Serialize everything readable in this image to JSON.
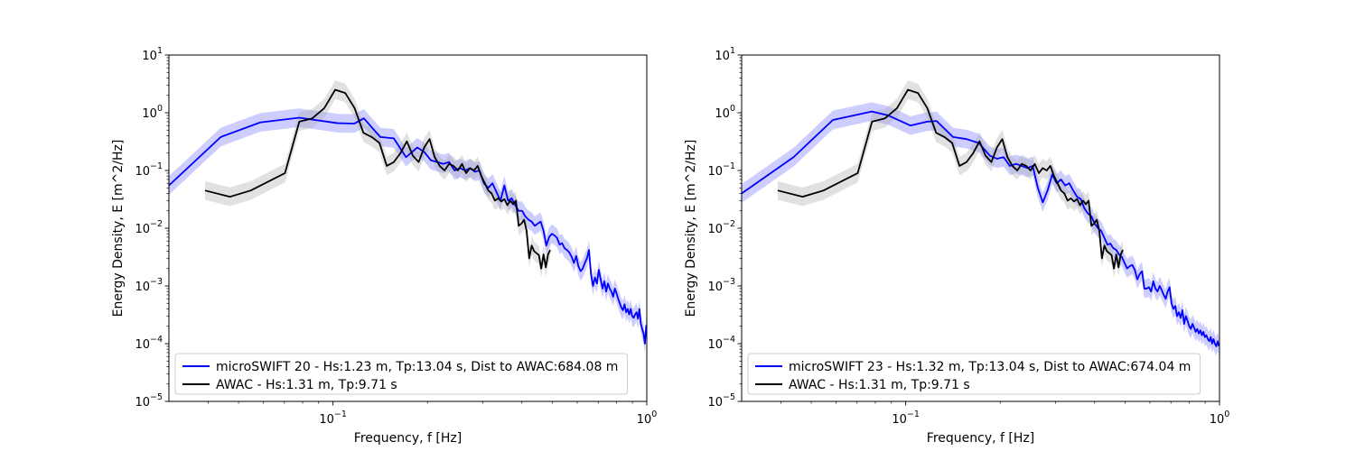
{
  "chart_data": [
    {
      "type": "line",
      "xlabel": "Frequency, f [Hz]",
      "ylabel": "Energy Density, E [m^2/Hz]",
      "xscale": "log",
      "yscale": "log",
      "xlim": [
        0.03,
        1.0
      ],
      "ylim": [
        1e-05,
        10
      ],
      "x_ticks": [
        {
          "value": 0.1,
          "base": "10",
          "exp": "−1"
        },
        {
          "value": 1.0,
          "base": "10",
          "exp": "0"
        }
      ],
      "y_ticks": [
        {
          "value": 1e-05,
          "base": "10",
          "exp": "−5"
        },
        {
          "value": 0.0001,
          "base": "10",
          "exp": "−4"
        },
        {
          "value": 0.001,
          "base": "10",
          "exp": "−3"
        },
        {
          "value": 0.01,
          "base": "10",
          "exp": "−2"
        },
        {
          "value": 0.1,
          "base": "10",
          "exp": "−1"
        },
        {
          "value": 1,
          "base": "10",
          "exp": "0"
        },
        {
          "value": 10,
          "base": "10",
          "exp": "1"
        }
      ],
      "legend_position": "lower-left",
      "series": [
        {
          "name": "microSWIFT 20 - Hs:1.23 m, Tp:13.04 s, Dist to AWAC:684.08 m",
          "color": "#0000ff",
          "band_color": "#6f6fff",
          "x": [
            0.03,
            0.0439,
            0.0586,
            0.078,
            0.1035,
            0.117,
            0.1254,
            0.1415,
            0.1562,
            0.1709,
            0.1855,
            0.1953,
            0.2051,
            0.2148,
            0.2246,
            0.2344,
            0.2441,
            0.2539,
            0.2637,
            0.2734,
            0.2832,
            0.293,
            0.3027,
            0.3125,
            0.3223,
            0.332,
            0.3418,
            0.3516,
            0.3613,
            0.3711,
            0.3809,
            0.3906,
            0.4004,
            0.4102,
            0.4199,
            0.4297,
            0.4395,
            0.4492,
            0.459,
            0.4688,
            0.4785,
            0.4883,
            0.4981,
            0.5078,
            0.5176,
            0.5273,
            0.5371,
            0.5469,
            0.5566,
            0.5664,
            0.5762,
            0.5859,
            0.5957,
            0.6055,
            0.6152,
            0.625,
            0.6348,
            0.6445,
            0.6543,
            0.6641,
            0.6738,
            0.6836,
            0.6934,
            0.7031,
            0.7129,
            0.7227,
            0.7324,
            0.7422,
            0.752,
            0.7617,
            0.7715,
            0.7813,
            0.791,
            0.8008,
            0.8105,
            0.8203,
            0.8301,
            0.8398,
            0.8496,
            0.8594,
            0.8691,
            0.8789,
            0.8887,
            0.8984,
            0.9082,
            0.918,
            0.9277,
            0.9375,
            0.9473,
            0.957,
            0.9668,
            0.9766,
            0.9863,
            0.9961
          ],
          "y": [
            0.055,
            0.38,
            0.68,
            0.82,
            0.66,
            0.65,
            0.8,
            0.38,
            0.36,
            0.17,
            0.25,
            0.21,
            0.15,
            0.14,
            0.13,
            0.14,
            0.1,
            0.11,
            0.1,
            0.11,
            0.095,
            0.1,
            0.06,
            0.05,
            0.06,
            0.042,
            0.03,
            0.055,
            0.03,
            0.033,
            0.025,
            0.02,
            0.02,
            0.016,
            0.014,
            0.013,
            0.011,
            0.012,
            0.013,
            0.009,
            0.005,
            0.007,
            0.008,
            0.0075,
            0.0068,
            0.0052,
            0.0055,
            0.0045,
            0.0042,
            0.0038,
            0.0032,
            0.0025,
            0.0033,
            0.0022,
            0.0018,
            0.002,
            0.0025,
            0.003,
            0.0042,
            0.0016,
            0.001,
            0.0014,
            0.0011,
            0.0019,
            0.0013,
            0.0009,
            0.0012,
            0.0008,
            0.0011,
            0.0009,
            0.0008,
            0.00065,
            0.0009,
            0.00075,
            0.0006,
            0.0005,
            0.00042,
            0.00038,
            0.00048,
            0.00035,
            0.0004,
            0.00032,
            0.0004,
            0.0003,
            0.00028,
            0.00032,
            0.00035,
            0.00027,
            0.0004,
            0.00022,
            0.00018,
            0.00015,
            0.0001,
            0.00021
          ],
          "band_factor": 1.45
        },
        {
          "name": "AWAC - Hs:1.31 m, Tp:9.71 s",
          "color": "#000000",
          "band_color": "#a8a8a8",
          "x": [
            0.0391,
            0.0469,
            0.0547,
            0.0625,
            0.0703,
            0.0781,
            0.0859,
            0.0938,
            0.1016,
            0.1094,
            0.1172,
            0.125,
            0.1328,
            0.1406,
            0.1484,
            0.1563,
            0.1641,
            0.1719,
            0.1797,
            0.1875,
            0.1953,
            0.2031,
            0.2109,
            0.2188,
            0.2266,
            0.2344,
            0.2422,
            0.25,
            0.2578,
            0.2656,
            0.2734,
            0.2813,
            0.2891,
            0.2969,
            0.3047,
            0.3125,
            0.3203,
            0.3281,
            0.3359,
            0.3438,
            0.3516,
            0.3594,
            0.3672,
            0.375,
            0.3828,
            0.3906,
            0.3984,
            0.4063,
            0.4141,
            0.4219,
            0.4297,
            0.4375,
            0.4453,
            0.4531,
            0.4609,
            0.4688,
            0.4766,
            0.4844,
            0.4922
          ],
          "y": [
            0.045,
            0.035,
            0.045,
            0.065,
            0.09,
            0.7,
            0.8,
            1.2,
            2.5,
            2.2,
            1.2,
            0.45,
            0.38,
            0.3,
            0.12,
            0.14,
            0.2,
            0.32,
            0.18,
            0.14,
            0.25,
            0.35,
            0.17,
            0.12,
            0.1,
            0.13,
            0.12,
            0.1,
            0.13,
            0.09,
            0.11,
            0.1,
            0.12,
            0.08,
            0.06,
            0.045,
            0.04,
            0.03,
            0.033,
            0.029,
            0.032,
            0.025,
            0.03,
            0.026,
            0.03,
            0.011,
            0.012,
            0.014,
            0.009,
            0.003,
            0.005,
            0.004,
            0.0037,
            0.0034,
            0.002,
            0.0035,
            0.0021,
            0.0035,
            0.0042
          ],
          "band_factor": 1.45
        }
      ]
    },
    {
      "type": "line",
      "xlabel": "Frequency, f [Hz]",
      "ylabel": "Energy Density, E [m^2/Hz]",
      "xscale": "log",
      "yscale": "log",
      "xlim": [
        0.03,
        1.0
      ],
      "ylim": [
        1e-05,
        10
      ],
      "x_ticks": [
        {
          "value": 0.1,
          "base": "10",
          "exp": "−1"
        },
        {
          "value": 1.0,
          "base": "10",
          "exp": "0"
        }
      ],
      "y_ticks": [
        {
          "value": 1e-05,
          "base": "10",
          "exp": "−5"
        },
        {
          "value": 0.0001,
          "base": "10",
          "exp": "−4"
        },
        {
          "value": 0.001,
          "base": "10",
          "exp": "−3"
        },
        {
          "value": 0.01,
          "base": "10",
          "exp": "−2"
        },
        {
          "value": 0.1,
          "base": "10",
          "exp": "−1"
        },
        {
          "value": 1,
          "base": "10",
          "exp": "0"
        },
        {
          "value": 10,
          "base": "10",
          "exp": "1"
        }
      ],
      "legend_position": "lower-left",
      "series": [
        {
          "name": "microSWIFT 23 - Hs:1.32 m, Tp:13.04 s, Dist to AWAC:674.04 m",
          "color": "#0000ff",
          "band_color": "#6f6fff",
          "x": [
            0.03,
            0.0439,
            0.0586,
            0.078,
            0.0879,
            0.1035,
            0.117,
            0.1254,
            0.1415,
            0.1562,
            0.1709,
            0.1855,
            0.1953,
            0.2051,
            0.2148,
            0.2246,
            0.2344,
            0.2441,
            0.2539,
            0.2637,
            0.2734,
            0.2832,
            0.293,
            0.3027,
            0.3125,
            0.3223,
            0.332,
            0.3418,
            0.3516,
            0.3613,
            0.3711,
            0.3809,
            0.3906,
            0.4004,
            0.4102,
            0.4199,
            0.4297,
            0.4395,
            0.4492,
            0.459,
            0.4688,
            0.4785,
            0.4883,
            0.4981,
            0.5078,
            0.5176,
            0.5273,
            0.5371,
            0.5469,
            0.5566,
            0.5664,
            0.5762,
            0.5859,
            0.5957,
            0.6055,
            0.6152,
            0.625,
            0.6348,
            0.6445,
            0.6543,
            0.6641,
            0.6738,
            0.6836,
            0.6934,
            0.7031,
            0.7129,
            0.7227,
            0.7324,
            0.7422,
            0.752,
            0.7617,
            0.7715,
            0.7813,
            0.791,
            0.8008,
            0.8105,
            0.8203,
            0.8301,
            0.8398,
            0.8496,
            0.8594,
            0.8691,
            0.8789,
            0.8887,
            0.8984,
            0.9082,
            0.918,
            0.9277,
            0.9375,
            0.9473,
            0.957,
            0.9668,
            0.9766,
            0.9863,
            0.9961
          ],
          "y": [
            0.04,
            0.17,
            0.75,
            1.05,
            0.9,
            0.6,
            0.7,
            0.72,
            0.38,
            0.35,
            0.3,
            0.18,
            0.16,
            0.17,
            0.12,
            0.13,
            0.12,
            0.11,
            0.12,
            0.05,
            0.028,
            0.045,
            0.085,
            0.06,
            0.07,
            0.055,
            0.06,
            0.045,
            0.035,
            0.032,
            0.022,
            0.018,
            0.016,
            0.012,
            0.01,
            0.009,
            0.0068,
            0.0052,
            0.0054,
            0.0045,
            0.0042,
            0.0035,
            0.0032,
            0.0025,
            0.002,
            0.0022,
            0.0023,
            0.0019,
            0.0013,
            0.0016,
            0.0018,
            0.0009,
            0.0009,
            0.00095,
            0.0008,
            0.0012,
            0.0009,
            0.0008,
            0.001,
            0.00085,
            0.0007,
            0.0006,
            0.0008,
            0.00095,
            0.0005,
            0.0004,
            0.00045,
            0.0003,
            0.00035,
            0.00028,
            0.00038,
            0.00022,
            0.0003,
            0.00025,
            0.0002,
            0.00018,
            0.00022,
            0.00019,
            0.00016,
            0.00018,
            0.00015,
            0.00017,
            0.00014,
            0.00016,
            0.00013,
            0.00014,
            0.00012,
            0.00011,
            0.00013,
            0.0001,
            0.00012,
            0.0001,
            9e-05,
            0.00011,
            9e-05
          ],
          "band_factor": 1.45
        },
        {
          "name": "AWAC - Hs:1.31 m, Tp:9.71 s",
          "color": "#000000",
          "band_color": "#a8a8a8",
          "x": [
            0.0391,
            0.0469,
            0.0547,
            0.0625,
            0.0703,
            0.0781,
            0.0859,
            0.0938,
            0.1016,
            0.1094,
            0.1172,
            0.125,
            0.1328,
            0.1406,
            0.1484,
            0.1563,
            0.1641,
            0.1719,
            0.1797,
            0.1875,
            0.1953,
            0.2031,
            0.2109,
            0.2188,
            0.2266,
            0.2344,
            0.2422,
            0.25,
            0.2578,
            0.2656,
            0.2734,
            0.2813,
            0.2891,
            0.2969,
            0.3047,
            0.3125,
            0.3203,
            0.3281,
            0.3359,
            0.3438,
            0.3516,
            0.3594,
            0.3672,
            0.375,
            0.3828,
            0.3906,
            0.3984,
            0.4063,
            0.4141,
            0.4219,
            0.4297,
            0.4375,
            0.4453,
            0.4531,
            0.4609,
            0.4688,
            0.4766,
            0.4844,
            0.4922
          ],
          "y": [
            0.045,
            0.035,
            0.045,
            0.065,
            0.09,
            0.7,
            0.8,
            1.2,
            2.5,
            2.2,
            1.2,
            0.45,
            0.38,
            0.3,
            0.12,
            0.14,
            0.2,
            0.32,
            0.18,
            0.14,
            0.25,
            0.35,
            0.17,
            0.12,
            0.1,
            0.13,
            0.12,
            0.1,
            0.13,
            0.09,
            0.11,
            0.1,
            0.12,
            0.08,
            0.06,
            0.045,
            0.04,
            0.03,
            0.033,
            0.029,
            0.032,
            0.025,
            0.03,
            0.026,
            0.03,
            0.011,
            0.012,
            0.014,
            0.009,
            0.003,
            0.005,
            0.004,
            0.0037,
            0.0034,
            0.002,
            0.0035,
            0.0021,
            0.0035,
            0.0042
          ],
          "band_factor": 1.45
        }
      ]
    }
  ]
}
